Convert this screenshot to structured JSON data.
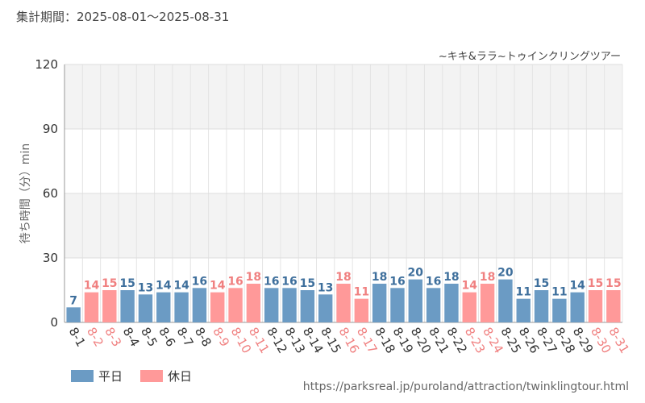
{
  "header": {
    "period_label": "集計期間：2025-08-01～2025-08-31"
  },
  "source_url": "https://parksreal.jp/puroland/attraction/twinklingtour.html",
  "colors": {
    "weekday": "#6b9bc4",
    "holiday": "#ff9999",
    "holiday_text": "#f08080",
    "weekday_text": "#3e6f9c"
  },
  "chart_data": {
    "type": "bar",
    "title": "~キキ&ララ~トゥインクリングツアー",
    "ylabel": "待ち時間（分）min",
    "xlabel": "",
    "ylim": [
      0,
      120
    ],
    "yticks": [
      0,
      30,
      60,
      90,
      120
    ],
    "grid": true,
    "legend_position": "bottom-left",
    "legend": [
      {
        "key": "weekday",
        "label": "平日"
      },
      {
        "key": "holiday",
        "label": "休日"
      }
    ],
    "categories": [
      "8-1",
      "8-2",
      "8-3",
      "8-4",
      "8-5",
      "8-6",
      "8-7",
      "8-8",
      "8-9",
      "8-10",
      "8-11",
      "8-12",
      "8-13",
      "8-14",
      "8-15",
      "8-16",
      "8-17",
      "8-18",
      "8-19",
      "8-20",
      "8-21",
      "8-22",
      "8-23",
      "8-24",
      "8-25",
      "8-26",
      "8-27",
      "8-28",
      "8-29",
      "8-30",
      "8-31"
    ],
    "values": [
      7,
      14,
      15,
      15,
      13,
      14,
      14,
      16,
      14,
      16,
      18,
      16,
      16,
      15,
      13,
      18,
      11,
      18,
      16,
      20,
      16,
      18,
      14,
      18,
      20,
      11,
      15,
      11,
      14,
      15,
      15
    ],
    "day_type": [
      "weekday",
      "holiday",
      "holiday",
      "weekday",
      "weekday",
      "weekday",
      "weekday",
      "weekday",
      "holiday",
      "holiday",
      "holiday",
      "weekday",
      "weekday",
      "weekday",
      "weekday",
      "holiday",
      "holiday",
      "weekday",
      "weekday",
      "weekday",
      "weekday",
      "weekday",
      "holiday",
      "holiday",
      "weekday",
      "weekday",
      "weekday",
      "weekday",
      "weekday",
      "holiday",
      "holiday"
    ]
  }
}
